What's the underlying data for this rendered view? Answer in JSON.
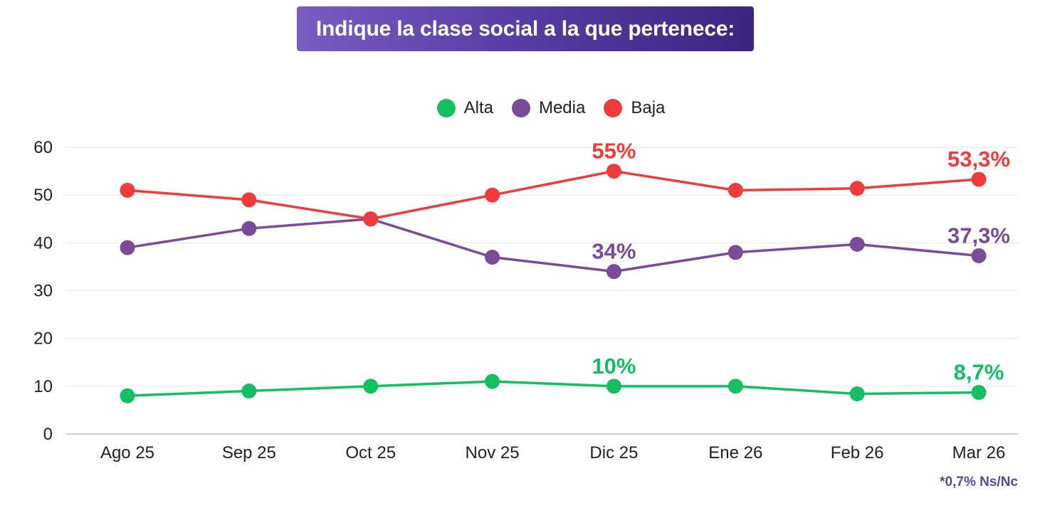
{
  "title": "Indique la clase social a la que pertenece:",
  "note": "*0,7% Ns/Nc",
  "chart_data": {
    "type": "line",
    "categories": [
      "Ago 25",
      "Sep 25",
      "Oct 25",
      "Nov 25",
      "Dic 25",
      "Ene 26",
      "Feb 26",
      "Mar 26"
    ],
    "ylim": [
      0,
      60
    ],
    "yticks": [
      0,
      10,
      20,
      30,
      40,
      50,
      60
    ],
    "grid": true,
    "legend_position": "top-center",
    "series": [
      {
        "name": "Alta",
        "color": "#12bf63",
        "values": [
          8,
          9,
          10,
          11,
          10,
          10,
          8.4,
          8.7
        ],
        "labels": [
          {
            "index": 4,
            "text": "10%"
          },
          {
            "index": 7,
            "text": "8,7%"
          }
        ]
      },
      {
        "name": "Media",
        "color": "#7b4a98",
        "values": [
          39,
          43,
          45,
          37,
          34,
          38,
          39.7,
          37.3
        ],
        "labels": [
          {
            "index": 4,
            "text": "34%"
          },
          {
            "index": 7,
            "text": "37,3%"
          }
        ]
      },
      {
        "name": "Baja",
        "color": "#ef3b3b",
        "values": [
          51,
          49,
          45,
          50,
          55,
          51,
          51.4,
          53.3
        ],
        "labels": [
          {
            "index": 4,
            "text": "55%"
          },
          {
            "index": 7,
            "text": "53,3%"
          }
        ]
      }
    ]
  }
}
